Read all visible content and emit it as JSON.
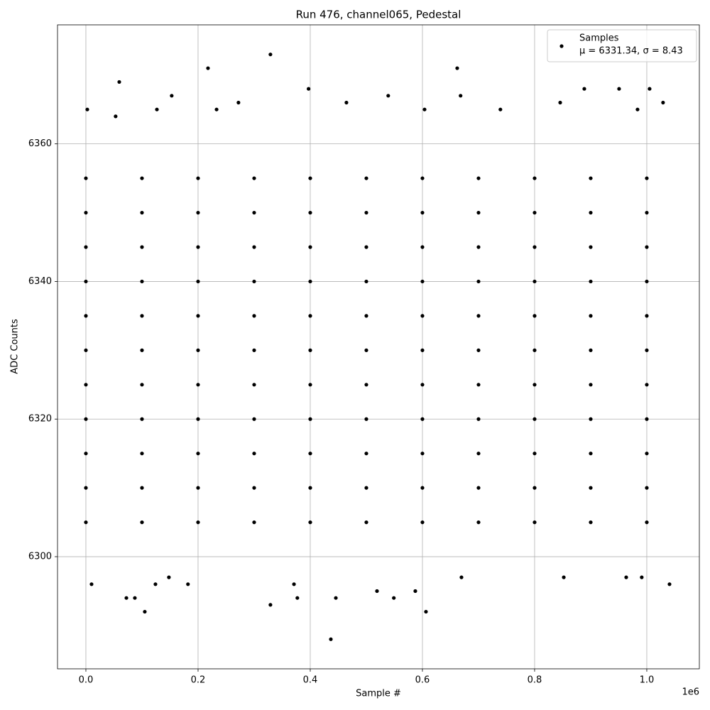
{
  "chart_data": {
    "type": "scatter",
    "title": "Run 476, channel065, Pedestal",
    "xlabel": "Sample #",
    "ylabel": "ADC Counts",
    "x_offset_label": "1e6",
    "xlim": [
      -50600,
      1093700
    ],
    "ylim": [
      6283.7,
      6377.3
    ],
    "xticks": [
      {
        "value": 0,
        "label": "0.0"
      },
      {
        "value": 200000,
        "label": "0.2"
      },
      {
        "value": 400000,
        "label": "0.4"
      },
      {
        "value": 600000,
        "label": "0.6"
      },
      {
        "value": 800000,
        "label": "0.8"
      },
      {
        "value": 1000000,
        "label": "1.0"
      }
    ],
    "yticks": [
      6300,
      6320,
      6340,
      6360
    ],
    "grid": true,
    "legend_position": "upper right",
    "series": [
      {
        "name": "Samples",
        "legend_stats": "μ = 6331.34, σ = 8.43",
        "color": "#000000",
        "x": [
          0,
          100000,
          200000,
          300000,
          400000,
          500000,
          600000,
          700000,
          800000,
          900000,
          1000000,
          0,
          100000,
          200000,
          300000,
          400000,
          500000,
          600000,
          700000,
          800000,
          900000,
          1000000,
          0,
          100000,
          200000,
          300000,
          400000,
          500000,
          600000,
          700000,
          800000,
          900000,
          1000000,
          0,
          100000,
          200000,
          300000,
          400000,
          500000,
          600000,
          700000,
          800000,
          900000,
          1000000,
          0,
          100000,
          200000,
          300000,
          400000,
          500000,
          600000,
          700000,
          800000,
          900000,
          1000000,
          0,
          100000,
          200000,
          300000,
          400000,
          500000,
          600000,
          700000,
          800000,
          900000,
          1000000,
          0,
          100000,
          200000,
          300000,
          400000,
          500000,
          600000,
          700000,
          800000,
          900000,
          1000000,
          0,
          100000,
          200000,
          300000,
          400000,
          500000,
          600000,
          700000,
          800000,
          900000,
          1000000,
          0,
          100000,
          200000,
          300000,
          400000,
          500000,
          600000,
          700000,
          800000,
          900000,
          1000000,
          0,
          100000,
          200000,
          300000,
          400000,
          500000,
          600000,
          700000,
          800000,
          900000,
          1000000,
          0,
          100000,
          200000,
          300000,
          400000,
          500000,
          600000,
          700000,
          800000,
          900000,
          1000000,
          2500,
          59500,
          153000,
          217700,
          329000,
          397000,
          539000,
          662000,
          668000,
          888600,
          950600,
          1005000,
          1029000,
          53000,
          126600,
          233000,
          272000,
          464500,
          603800,
          739000,
          845600,
          983500,
          329000,
          87300,
          105000,
          436700,
          445600,
          519000,
          549000,
          606300,
          587300,
          371000,
          10100,
          124000,
          148000,
          182000,
          669600,
          852000,
          963300,
          1040500,
          991000,
          377000,
          72200
        ],
        "values": [
          6305,
          6305,
          6305,
          6305,
          6305,
          6305,
          6305,
          6305,
          6305,
          6305,
          6305,
          6310,
          6310,
          6310,
          6310,
          6310,
          6310,
          6310,
          6310,
          6310,
          6310,
          6310,
          6315,
          6315,
          6315,
          6315,
          6315,
          6315,
          6315,
          6315,
          6315,
          6315,
          6315,
          6320,
          6320,
          6320,
          6320,
          6320,
          6320,
          6320,
          6320,
          6320,
          6320,
          6320,
          6325,
          6325,
          6325,
          6325,
          6325,
          6325,
          6325,
          6325,
          6325,
          6325,
          6325,
          6330,
          6330,
          6330,
          6330,
          6330,
          6330,
          6330,
          6330,
          6330,
          6330,
          6330,
          6335,
          6335,
          6335,
          6335,
          6335,
          6335,
          6335,
          6335,
          6335,
          6335,
          6335,
          6340,
          6340,
          6340,
          6340,
          6340,
          6340,
          6340,
          6340,
          6340,
          6340,
          6340,
          6345,
          6345,
          6345,
          6345,
          6345,
          6345,
          6345,
          6345,
          6345,
          6345,
          6345,
          6350,
          6350,
          6350,
          6350,
          6350,
          6350,
          6350,
          6350,
          6350,
          6350,
          6350,
          6355,
          6355,
          6355,
          6355,
          6355,
          6355,
          6355,
          6355,
          6355,
          6355,
          6355,
          6365,
          6369,
          6367,
          6371,
          6373,
          6368,
          6367,
          6371,
          6367,
          6368,
          6368,
          6368,
          6366,
          6364,
          6365,
          6365,
          6366,
          6366,
          6365,
          6365,
          6366,
          6365,
          6293,
          6294,
          6292,
          6288,
          6294,
          6295,
          6294,
          6292,
          6295,
          6296,
          6296,
          6296,
          6297,
          6296,
          6297,
          6297,
          6297,
          6296,
          6297,
          6294,
          6294
        ]
      }
    ]
  }
}
